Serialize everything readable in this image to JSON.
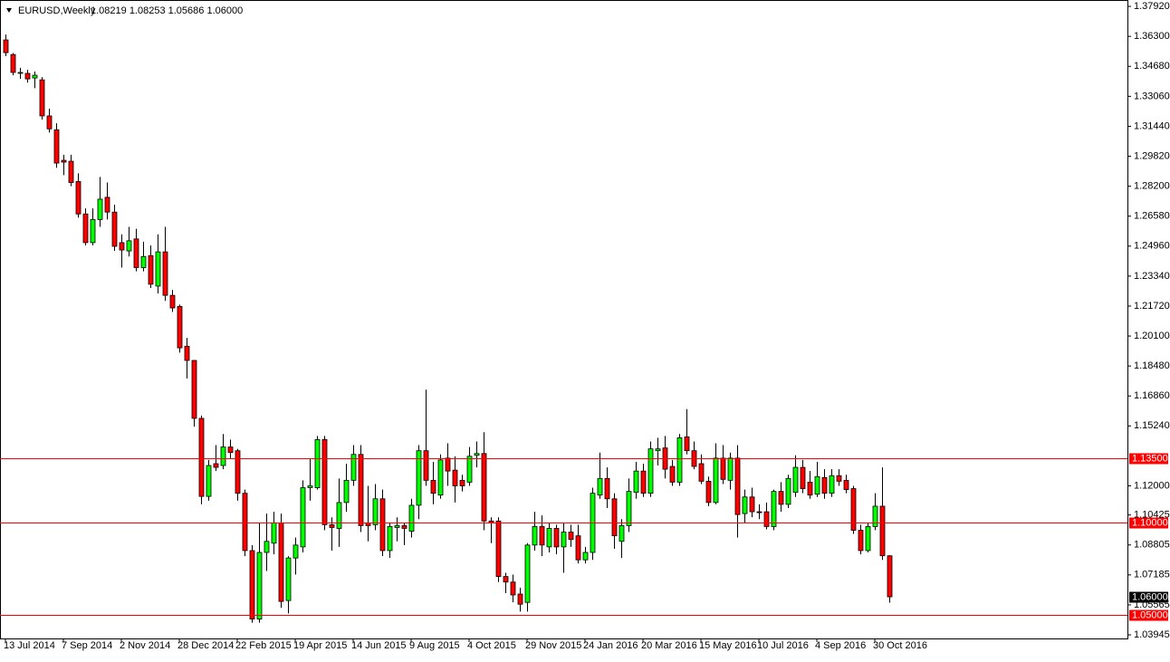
{
  "chart_data": {
    "type": "candlestick",
    "title": "EURUSD,Weekly",
    "ohlc_text": "1.08219 1.08253 1.05686 1.06000",
    "up_color": "#00ff00",
    "down_color": "#ff0000",
    "level_color": "#ff0000",
    "categories": [
      "13 Jul 2014",
      null,
      null,
      null,
      null,
      null,
      null,
      null,
      "7 Sep 2014",
      null,
      null,
      null,
      null,
      null,
      null,
      null,
      "2 Nov 2014",
      null,
      null,
      null,
      null,
      null,
      null,
      null,
      "28 Dec 2014",
      null,
      null,
      null,
      null,
      null,
      null,
      null,
      "22 Feb 2015",
      null,
      null,
      null,
      null,
      null,
      null,
      null,
      "19 Apr 2015",
      null,
      null,
      null,
      null,
      null,
      null,
      null,
      "14 Jun 2015",
      null,
      null,
      null,
      null,
      null,
      null,
      null,
      "9 Aug 2015",
      null,
      null,
      null,
      null,
      null,
      null,
      null,
      "4 Oct 2015",
      null,
      null,
      null,
      null,
      null,
      null,
      null,
      "29 Nov 2015",
      null,
      null,
      null,
      null,
      null,
      null,
      null,
      "24 Jan 2016",
      null,
      null,
      null,
      null,
      null,
      null,
      null,
      "20 Mar 2016",
      null,
      null,
      null,
      null,
      null,
      null,
      null,
      "15 May 2016",
      null,
      null,
      null,
      null,
      null,
      null,
      null,
      "10 Jul 2016",
      null,
      null,
      null,
      null,
      null,
      null,
      null,
      "4 Sep 2016",
      null,
      null,
      null,
      null,
      null,
      null,
      null,
      "30 Oct 2016",
      null,
      null
    ],
    "open": [
      1.3611,
      1.3532,
      1.3435,
      1.343,
      1.3405,
      1.3395,
      1.32,
      1.3125,
      1.296,
      1.2955,
      1.2845,
      1.267,
      1.2515,
      1.264,
      1.276,
      1.268,
      1.2515,
      1.247,
      1.2535,
      1.238,
      1.2445,
      1.228,
      1.2465,
      1.223,
      1.217,
      1.1955,
      1.1878,
      1.1565,
      1.1143,
      1.132,
      1.131,
      1.141,
      1.139,
      1.116,
      1.085,
      1.048,
      1.084,
      1.089,
      1.1,
      1.058,
      1.081,
      1.087,
      1.119,
      1.119,
      1.145,
      1.099,
      1.097,
      1.111,
      1.123,
      1.137,
      1.1,
      1.099,
      1.113,
      1.085,
      1.0975,
      1.0985,
      1.0955,
      1.1095,
      1.139,
      1.123,
      1.115,
      1.135,
      1.1285,
      1.123,
      1.122,
      1.1365,
      1.1375,
      1.101,
      1.101,
      1.071,
      1.068,
      1.0615,
      1.057,
      1.088,
      1.098,
      1.087,
      1.097,
      1.087,
      1.095,
      1.093,
      1.08,
      1.084,
      1.115,
      1.124,
      1.113,
      1.09,
      1.0985,
      1.1165,
      1.128,
      1.116,
      1.139,
      1.1405,
      1.1305,
      1.122,
      1.1465,
      1.139,
      1.132,
      1.1225,
      1.111,
      1.135,
      1.123,
      1.135,
      1.105,
      1.114,
      1.106,
      1.106,
      1.098,
      1.117,
      1.11,
      1.1165,
      1.13,
      1.122,
      1.1155,
      1.1245,
      1.116,
      1.1255,
      1.123,
      1.1185,
      1.096,
      1.085,
      1.098,
      1.109,
      1.08219
    ],
    "high": [
      1.364,
      1.354,
      1.346,
      1.345,
      1.344,
      1.341,
      1.324,
      1.316,
      1.299,
      1.299,
      1.289,
      1.27,
      1.27,
      1.287,
      1.284,
      1.272,
      1.256,
      1.26,
      1.259,
      1.252,
      1.25,
      1.256,
      1.26,
      1.226,
      1.218,
      1.2,
      1.188,
      1.158,
      1.134,
      1.142,
      1.148,
      1.145,
      1.14,
      1.118,
      1.088,
      1.1,
      1.105,
      1.106,
      1.105,
      1.082,
      1.092,
      1.123,
      1.135,
      1.147,
      1.147,
      1.103,
      1.124,
      1.132,
      1.142,
      1.142,
      1.12,
      1.121,
      1.118,
      1.1,
      1.103,
      1.1,
      1.113,
      1.142,
      1.172,
      1.133,
      1.137,
      1.143,
      1.136,
      1.126,
      1.141,
      1.144,
      1.149,
      1.103,
      1.103,
      1.073,
      1.072,
      1.065,
      1.089,
      1.106,
      1.104,
      1.1,
      1.099,
      1.1,
      1.099,
      1.099,
      1.087,
      1.119,
      1.138,
      1.13,
      1.116,
      1.102,
      1.124,
      1.133,
      1.132,
      1.144,
      1.146,
      1.147,
      1.134,
      1.148,
      1.1615,
      1.144,
      1.137,
      1.125,
      1.143,
      1.142,
      1.138,
      1.142,
      1.118,
      1.119,
      1.11,
      1.111,
      1.118,
      1.122,
      1.126,
      1.1365,
      1.134,
      1.128,
      1.133,
      1.129,
      1.129,
      1.129,
      1.126,
      1.12,
      1.099,
      1.1,
      1.116,
      1.13,
      1.08253
    ],
    "low": [
      1.3523,
      1.342,
      1.34,
      1.338,
      1.335,
      1.318,
      1.311,
      1.292,
      1.288,
      1.282,
      1.265,
      1.25,
      1.25,
      1.26,
      1.264,
      1.247,
      1.238,
      1.244,
      1.236,
      1.236,
      1.227,
      1.224,
      1.22,
      1.214,
      1.192,
      1.178,
      1.152,
      1.11,
      1.112,
      1.128,
      1.129,
      1.135,
      1.112,
      1.082,
      1.046,
      1.046,
      1.074,
      1.083,
      1.054,
      1.051,
      1.072,
      1.084,
      1.112,
      1.118,
      1.096,
      1.085,
      1.087,
      1.106,
      1.12,
      1.095,
      1.09,
      1.096,
      1.082,
      1.081,
      1.09,
      1.088,
      1.092,
      1.102,
      1.12,
      1.11,
      1.113,
      1.12,
      1.111,
      1.117,
      1.12,
      1.13,
      1.096,
      1.089,
      1.068,
      1.062,
      1.057,
      1.052,
      1.052,
      1.085,
      1.082,
      1.084,
      1.083,
      1.073,
      1.087,
      1.078,
      1.078,
      1.08,
      1.113,
      1.108,
      1.086,
      1.081,
      1.095,
      1.113,
      1.114,
      1.114,
      1.131,
      1.124,
      1.12,
      1.12,
      1.137,
      1.129,
      1.121,
      1.109,
      1.11,
      1.121,
      1.118,
      1.092,
      1.1,
      1.103,
      1.102,
      1.0965,
      1.096,
      1.106,
      1.108,
      1.114,
      1.116,
      1.113,
      1.114,
      1.113,
      1.114,
      1.12,
      1.116,
      1.094,
      1.083,
      1.084,
      1.096,
      1.08,
      1.05686
    ],
    "close": [
      1.3542,
      1.3435,
      1.3435,
      1.34,
      1.342,
      1.32,
      1.313,
      1.2945,
      1.295,
      1.284,
      1.267,
      1.2515,
      1.264,
      1.275,
      1.268,
      1.2495,
      1.2475,
      1.2525,
      1.238,
      1.244,
      1.229,
      1.2465,
      1.223,
      1.2162,
      1.1946,
      1.1878,
      1.1565,
      1.1143,
      1.131,
      1.13,
      1.141,
      1.138,
      1.116,
      1.085,
      1.048,
      1.084,
      1.09,
      1.1,
      1.0575,
      1.081,
      1.088,
      1.119,
      1.12,
      1.145,
      1.099,
      1.0975,
      1.111,
      1.123,
      1.137,
      1.0985,
      1.0985,
      1.113,
      1.085,
      1.098,
      1.0985,
      1.097,
      1.1095,
      1.139,
      1.123,
      1.116,
      1.134,
      1.128,
      1.12,
      1.12,
      1.136,
      1.1375,
      1.101,
      1.1,
      1.071,
      1.068,
      1.061,
      1.056,
      1.088,
      1.098,
      1.088,
      1.097,
      1.087,
      1.095,
      1.091,
      1.08,
      1.084,
      1.116,
      1.124,
      1.113,
      1.093,
      1.0985,
      1.117,
      1.128,
      1.116,
      1.14,
      1.14,
      1.129,
      1.122,
      1.146,
      1.139,
      1.1305,
      1.1225,
      1.111,
      1.135,
      1.1235,
      1.135,
      1.1045,
      1.114,
      1.106,
      1.1055,
      1.098,
      1.117,
      1.11,
      1.124,
      1.13,
      1.1185,
      1.115,
      1.125,
      1.116,
      1.1255,
      1.1225,
      1.118,
      1.096,
      1.085,
      1.098,
      1.109,
      1.0822,
      1.06
    ],
    "ylim": [
      1.0375,
      1.3812
    ],
    "yticks": [
      {
        "value": 1.3792,
        "label": "1.37920"
      },
      {
        "value": 1.363,
        "label": "1.36300"
      },
      {
        "value": 1.3468,
        "label": "1.34680"
      },
      {
        "value": 1.3306,
        "label": "1.33060"
      },
      {
        "value": 1.3144,
        "label": "1.31440"
      },
      {
        "value": 1.2982,
        "label": "1.29820"
      },
      {
        "value": 1.282,
        "label": "1.28200"
      },
      {
        "value": 1.2658,
        "label": "1.26580"
      },
      {
        "value": 1.2496,
        "label": "1.24960"
      },
      {
        "value": 1.2334,
        "label": "1.23340"
      },
      {
        "value": 1.2172,
        "label": "1.21720"
      },
      {
        "value": 1.201,
        "label": "1.20100"
      },
      {
        "value": 1.1848,
        "label": "1.18480"
      },
      {
        "value": 1.1686,
        "label": "1.16860"
      },
      {
        "value": 1.1524,
        "label": "1.15240"
      },
      {
        "value": 1.12,
        "label": "1.12000"
      },
      {
        "value": 1.10425,
        "label": "1.10425"
      },
      {
        "value": 1.08805,
        "label": "1.08805"
      },
      {
        "value": 1.07185,
        "label": "1.07185"
      },
      {
        "value": 1.05565,
        "label": "1.05565"
      },
      {
        "value": 1.03945,
        "label": "1.03945"
      }
    ],
    "levels": [
      {
        "value": 1.135,
        "label": "1.13500"
      },
      {
        "value": 1.1,
        "label": "1.10000"
      },
      {
        "value": 1.05,
        "label": "1.05000"
      }
    ],
    "last_price": {
      "value": 1.06,
      "label": "1.06000"
    }
  }
}
